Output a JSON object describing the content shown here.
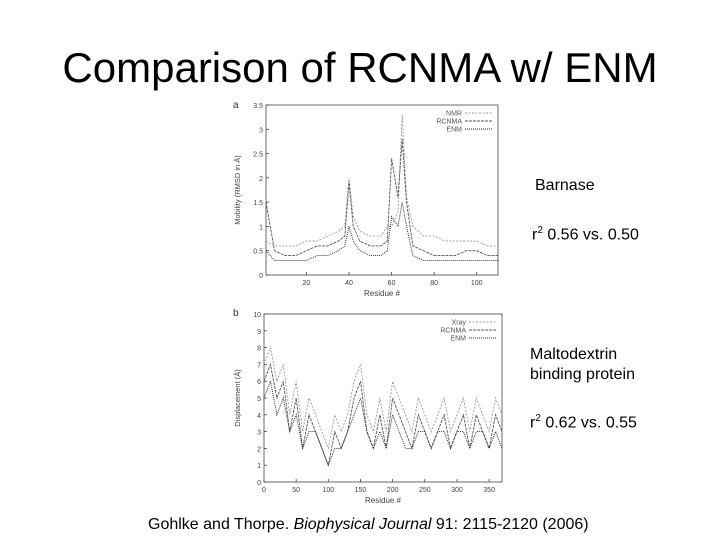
{
  "title": "Comparison of RCNMA w/ ENM",
  "captions": {
    "barnase": {
      "name": "Barnase",
      "stat_prefix": "r",
      "stat_sup": "2",
      "stat_value": " 0.56 vs. 0.50"
    },
    "maltodextrin": {
      "name": "Maltodextrin binding protein",
      "stat_prefix": "r",
      "stat_sup": "2",
      "stat_value": " 0.62 vs. 0.55"
    }
  },
  "citation": {
    "authors": "Gohlke and Thorpe. ",
    "journal": "Biophysical Journal",
    "details": " 91: 2115-2120 (2006)"
  },
  "chart_data": [
    {
      "type": "line",
      "panel_label": "a",
      "xlabel": "Residue #",
      "ylabel": "Mobility (RMSD in Å)",
      "xlim": [
        1,
        110
      ],
      "ylim": [
        0,
        3.5
      ],
      "xticks": [
        20,
        40,
        60,
        80,
        100
      ],
      "yticks": [
        0,
        0.5,
        1,
        1.5,
        2,
        2.5,
        3,
        3.5
      ],
      "legend_position": "top-right",
      "grid": false,
      "x": [
        1,
        5,
        10,
        15,
        20,
        25,
        30,
        35,
        38,
        40,
        42,
        45,
        50,
        55,
        58,
        60,
        63,
        65,
        67,
        70,
        75,
        80,
        85,
        90,
        95,
        100,
        105,
        110
      ],
      "series": [
        {
          "name": "NMR",
          "color": "#9a9a9a",
          "values": [
            0.7,
            0.6,
            0.6,
            0.6,
            0.7,
            0.7,
            0.8,
            0.9,
            1.0,
            2.0,
            1.2,
            0.9,
            0.8,
            0.8,
            1.0,
            1.0,
            1.3,
            3.3,
            1.6,
            1.0,
            0.8,
            0.8,
            0.7,
            0.7,
            0.7,
            0.7,
            0.6,
            0.6
          ]
        },
        {
          "name": "RCNMA",
          "color": "#555555",
          "values": [
            1.5,
            0.5,
            0.4,
            0.4,
            0.5,
            0.6,
            0.6,
            0.7,
            0.8,
            1.9,
            1.0,
            0.7,
            0.6,
            0.6,
            0.7,
            2.4,
            1.6,
            2.8,
            1.5,
            0.6,
            0.5,
            0.4,
            0.4,
            0.4,
            0.5,
            0.5,
            0.4,
            0.4
          ]
        },
        {
          "name": "ENM",
          "color": "#222222",
          "values": [
            0.5,
            0.3,
            0.3,
            0.3,
            0.3,
            0.4,
            0.4,
            0.5,
            0.6,
            1.0,
            0.7,
            0.5,
            0.4,
            0.4,
            0.5,
            1.2,
            1.0,
            1.5,
            1.0,
            0.4,
            0.3,
            0.3,
            0.3,
            0.3,
            0.3,
            0.3,
            0.3,
            0.3
          ]
        }
      ]
    },
    {
      "type": "line",
      "panel_label": "b",
      "xlabel": "Residue #",
      "ylabel": "Displacement (Å)",
      "xlim": [
        0,
        370
      ],
      "ylim": [
        0,
        10
      ],
      "xticks": [
        0,
        50,
        100,
        150,
        200,
        250,
        300,
        350
      ],
      "yticks": [
        0,
        1,
        2,
        3,
        4,
        5,
        6,
        7,
        8,
        9,
        10
      ],
      "legend_position": "top-right",
      "grid": false,
      "x": [
        0,
        10,
        20,
        30,
        40,
        50,
        60,
        70,
        80,
        90,
        100,
        110,
        120,
        130,
        140,
        150,
        160,
        170,
        180,
        190,
        200,
        210,
        220,
        230,
        240,
        250,
        260,
        270,
        280,
        290,
        300,
        310,
        320,
        330,
        340,
        350,
        360,
        370
      ],
      "series": [
        {
          "name": "Xray",
          "color": "#9a9a9a",
          "values": [
            7,
            8,
            6,
            7,
            4,
            6,
            3,
            5,
            4,
            3,
            2,
            4,
            3,
            4,
            6,
            7,
            4,
            3,
            5,
            3,
            6,
            5,
            4,
            3,
            5,
            4,
            3,
            4,
            5,
            3,
            4,
            5,
            3,
            5,
            4,
            3,
            5,
            4
          ]
        },
        {
          "name": "RCNMA",
          "color": "#555555",
          "values": [
            6,
            7,
            5,
            6,
            3,
            5,
            2,
            4,
            3,
            2,
            1,
            3,
            2,
            3,
            5,
            6,
            3,
            2,
            4,
            2,
            5,
            4,
            3,
            2,
            4,
            3,
            2,
            3,
            4,
            2,
            3,
            4,
            2,
            4,
            3,
            2,
            4,
            3
          ]
        },
        {
          "name": "ENM",
          "color": "#222222",
          "values": [
            5,
            6,
            4,
            5,
            3,
            4,
            2,
            3,
            3,
            2,
            1,
            2,
            2,
            3,
            4,
            5,
            3,
            2,
            3,
            2,
            4,
            3,
            2,
            2,
            3,
            3,
            2,
            3,
            3,
            2,
            3,
            3,
            2,
            3,
            3,
            2,
            3,
            2
          ]
        }
      ]
    }
  ]
}
